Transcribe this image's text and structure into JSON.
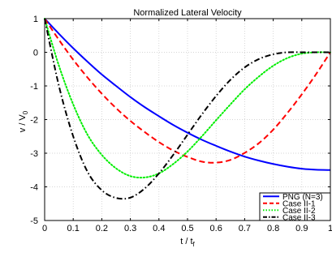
{
  "chart_data": {
    "type": "line",
    "title": "Normalized Lateral Velocity",
    "xlabel": "t / t",
    "xlabel_sub": "f",
    "ylabel": "v / V",
    "ylabel_sub": "0",
    "xlim": [
      0,
      1
    ],
    "ylim": [
      -5,
      1
    ],
    "xticks": [
      "0",
      "0.1",
      "0.2",
      "0.3",
      "0.4",
      "0.5",
      "0.6",
      "0.7",
      "0.8",
      "0.9",
      "1"
    ],
    "yticks": [
      "1",
      "0",
      "-1",
      "-2",
      "-3",
      "-4",
      "-5"
    ],
    "grid": true,
    "legend_position": "bottom-right",
    "x": [
      0,
      0.05,
      0.1,
      0.15,
      0.2,
      0.25,
      0.3,
      0.35,
      0.4,
      0.45,
      0.5,
      0.55,
      0.6,
      0.65,
      0.7,
      0.75,
      0.8,
      0.85,
      0.9,
      0.95,
      1
    ],
    "series": [
      {
        "name": "PNG (N=3)",
        "color": "#0000ff",
        "dash": "solid",
        "values": [
          1.0,
          0.55,
          0.12,
          -0.28,
          -0.66,
          -1.0,
          -1.33,
          -1.63,
          -1.9,
          -2.16,
          -2.39,
          -2.6,
          -2.78,
          -2.95,
          -3.1,
          -3.22,
          -3.32,
          -3.4,
          -3.46,
          -3.49,
          -3.5
        ]
      },
      {
        "name": "Case II-1",
        "color": "#ff0000",
        "dash": "dash",
        "values": [
          1.0,
          0.37,
          -0.22,
          -0.75,
          -1.23,
          -1.66,
          -2.04,
          -2.37,
          -2.67,
          -2.92,
          -3.11,
          -3.25,
          -3.28,
          -3.2,
          -2.99,
          -2.7,
          -2.3,
          -1.8,
          -1.25,
          -0.65,
          0.0
        ]
      },
      {
        "name": "Case II-2",
        "color": "#00ee00",
        "dash": "dot",
        "values": [
          1.0,
          -0.4,
          -1.55,
          -2.45,
          -3.05,
          -3.45,
          -3.68,
          -3.72,
          -3.6,
          -3.32,
          -2.95,
          -2.5,
          -2.02,
          -1.55,
          -1.1,
          -0.72,
          -0.4,
          -0.17,
          -0.04,
          0.0,
          0.0
        ]
      },
      {
        "name": "Case II-3",
        "color": "#000000",
        "dash": "dashdot",
        "values": [
          1.0,
          -1.0,
          -2.5,
          -3.55,
          -4.1,
          -4.33,
          -4.32,
          -4.05,
          -3.6,
          -3.05,
          -2.45,
          -1.85,
          -1.3,
          -0.82,
          -0.45,
          -0.2,
          -0.06,
          0.0,
          0.0,
          0.0,
          0.0
        ]
      }
    ]
  }
}
